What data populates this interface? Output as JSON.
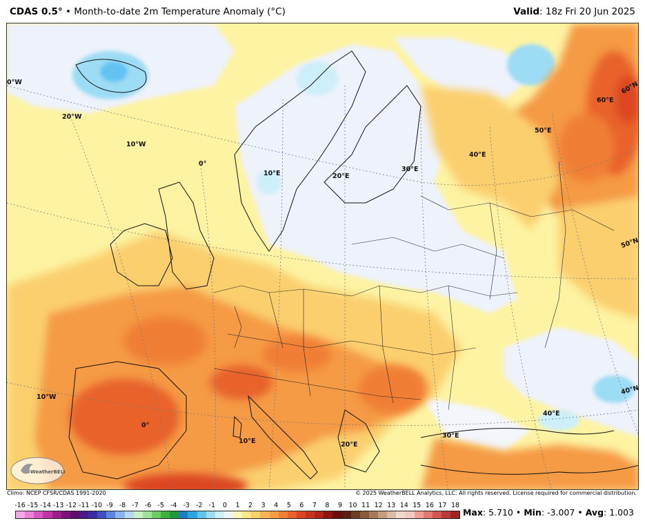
{
  "header": {
    "model": "CDAS 0.5°",
    "sep": "•",
    "title": "Month-to-date 2m Temperature Anomaly (°C)",
    "valid_label": "Valid",
    "valid_value": ": 18z Fri 20 Jun 2025"
  },
  "map": {
    "graticule_labels": [
      {
        "text": "0°W",
        "name": "lon-label-0w"
      },
      {
        "text": "20°W",
        "name": "lon-label-20w"
      },
      {
        "text": "10°W",
        "name": "lon-label-10w-north"
      },
      {
        "text": "0°",
        "name": "lon-label-0-north"
      },
      {
        "text": "10°E",
        "name": "lon-label-10e-north"
      },
      {
        "text": "20°E",
        "name": "lon-label-20e-north"
      },
      {
        "text": "30°E",
        "name": "lon-label-30e-north"
      },
      {
        "text": "40°E",
        "name": "lon-label-40e-north"
      },
      {
        "text": "50°E",
        "name": "lon-label-50e"
      },
      {
        "text": "60°E",
        "name": "lon-label-60e"
      },
      {
        "text": "60°N",
        "name": "lat-label-60n"
      },
      {
        "text": "50°N",
        "name": "lat-label-50n"
      },
      {
        "text": "40°N",
        "name": "lat-label-40n"
      },
      {
        "text": "10°W",
        "name": "lon-label-10w-south"
      },
      {
        "text": "0°",
        "name": "lon-label-0-south"
      },
      {
        "text": "10°E",
        "name": "lon-label-10e-south"
      },
      {
        "text": "20°E",
        "name": "lon-label-20e-south"
      },
      {
        "text": "30°E",
        "name": "lon-label-30e-south"
      },
      {
        "text": "40°E",
        "name": "lon-label-40e-south"
      }
    ],
    "logo_text": "WeatherBELL"
  },
  "credits": {
    "climo": "Climo: NCEP CFSR/CDAS 1991-2020",
    "copyright": "© 2025 WeatherBELL Analytics, LLC. All rights reserved. License required for commercial distribution."
  },
  "colorbar": {
    "labels": [
      "-16",
      "-15",
      "-14",
      "-13",
      "-12",
      "-11",
      "-10",
      "-9",
      "-8",
      "-7",
      "-6",
      "-5",
      "-4",
      "-3",
      "-2",
      "-1",
      "0",
      "1",
      "2",
      "3",
      "4",
      "5",
      "6",
      "7",
      "8",
      "9",
      "10",
      "11",
      "12",
      "13",
      "14",
      "15",
      "16",
      "17",
      "18"
    ],
    "colors": [
      "#f7a6e8",
      "#ec7fd8",
      "#d957c2",
      "#bf35a6",
      "#9c1f8c",
      "#7d137a",
      "#5e0e6e",
      "#4c1a8a",
      "#3b2aa3",
      "#3e4fc2",
      "#5d84dc",
      "#8bb4ec",
      "#b7d8f5",
      "#c9f0c8",
      "#9fe39a",
      "#6fcd66",
      "#3fb23a",
      "#1f9a3e",
      "#1c7fc4",
      "#2aa5e6",
      "#62c3f1",
      "#9ddcf5",
      "#cdeffa",
      "#eef2fb",
      "#fdf6b8",
      "#fde98a",
      "#fbcf6e",
      "#f9b457",
      "#f59a45",
      "#f07f36",
      "#e8622a",
      "#dc4722",
      "#c9331c",
      "#b02418",
      "#8e1612",
      "#6c0e0d",
      "#5a1f12",
      "#6e3d25",
      "#8a5a3d",
      "#a77a5c",
      "#c49c80",
      "#dcbca6",
      "#eed9cb",
      "#f5c7c0",
      "#ef9f98",
      "#e27872",
      "#d05652",
      "#ba3a3a",
      "#a32424"
    ],
    "unit": "°C"
  },
  "stats": {
    "max_label": "Max",
    "max_value": ": 5.710",
    "min_label": "Min",
    "min_value": ": -3.007",
    "avg_label": "Avg",
    "avg_value": ": 1.003",
    "sep": "•"
  },
  "colors": {
    "anomaly_strong_warm": "#e8622a",
    "anomaly_warm": "#f59a45",
    "anomaly_mild_warm": "#fbcf6e",
    "anomaly_slight_warm": "#fdf3a3",
    "anomaly_neutral": "#eef2fb",
    "anomaly_cool": "#9ddcf5"
  }
}
